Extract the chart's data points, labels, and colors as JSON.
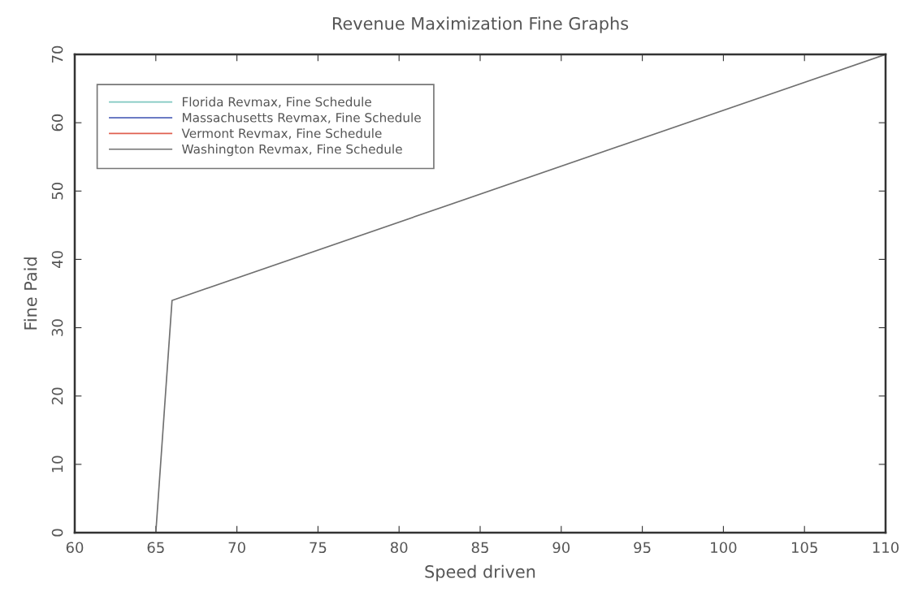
{
  "chart_data": {
    "type": "line",
    "title": "Revenue Maximization Fine Graphs",
    "xlabel": "Speed driven",
    "ylabel": "Fine Paid",
    "x": [
      65,
      66,
      110
    ],
    "series": [
      {
        "name": "Florida Revmax, Fine Schedule",
        "color": "#7fc8c0",
        "values": [
          null,
          null,
          null
        ]
      },
      {
        "name": "Massachusetts Revmax, Fine Schedule",
        "color": "#3a4fb0",
        "values": [
          null,
          null,
          null
        ]
      },
      {
        "name": "Vermont Revmax, Fine Schedule",
        "color": "#e06050",
        "values": [
          null,
          null,
          null
        ]
      },
      {
        "name": "Washington Revmax, Fine Schedule",
        "color": "#707070",
        "values": [
          0,
          34,
          70
        ]
      }
    ],
    "xlim": [
      60,
      110
    ],
    "xticks": [
      60,
      65,
      70,
      75,
      80,
      85,
      90,
      95,
      100,
      105,
      110
    ],
    "ylim": [
      0,
      70
    ],
    "yticks": [
      0,
      10,
      20,
      30,
      40,
      50,
      60,
      70
    ],
    "grid": false,
    "legend": "top left",
    "marker": "none",
    "line_style": "solid"
  }
}
